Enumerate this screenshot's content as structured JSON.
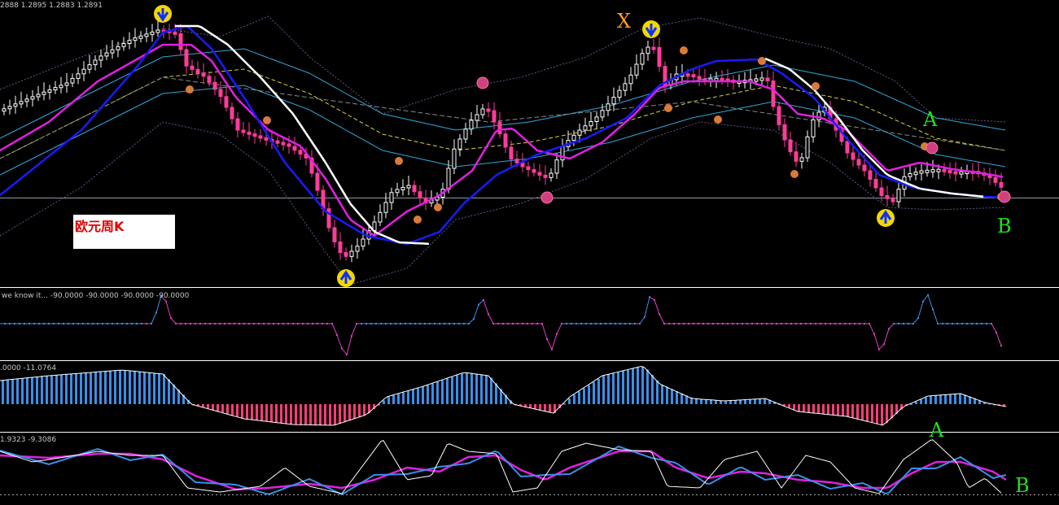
{
  "main_panel": {
    "ohlc_readout": "2888 1.2895 1.2883 1.2891",
    "chart_title": "欧元周K",
    "marks": {
      "x": "X",
      "a": "A",
      "b": "B"
    }
  },
  "indicator_1": {
    "readout": "we know it... -90.0000 -90.0000 -90.0000 -90.0000"
  },
  "indicator_2": {
    "readout": ".0000 -11.0764"
  },
  "indicator_3": {
    "readout": "1.9323 -9.3086",
    "marks": {
      "a": "A",
      "b": "B"
    }
  },
  "colors": {
    "background": "#000000",
    "bull_candle": "#ffffff",
    "bear_candle": "#ff3c9a",
    "ma_white": "#ffffff",
    "ma_blue": "#1a1aff",
    "ma_magenta": "#e020e0",
    "band_outer": "#5a5a8c",
    "band_inner": "#2fa7d8",
    "dashed_yellow": "#d8d040",
    "hist_up": "#3a8fe8",
    "hist_down": "#ff3c7a",
    "label_green": "#22e022",
    "label_orange": "#ff9a22"
  },
  "chart_data": {
    "type": "candlestick",
    "series": [
      {
        "name": "price",
        "note": "weekly EUR candles, values approximate (price scale not printed)"
      }
    ],
    "price_approx": [
      1.3,
      1.31,
      1.32,
      1.34,
      1.35,
      1.36,
      1.37,
      1.38,
      1.385,
      1.39,
      1.38,
      1.36,
      1.34,
      1.31,
      1.29,
      1.27,
      1.26,
      1.24,
      1.22,
      1.2,
      1.19,
      1.2,
      1.22,
      1.24,
      1.25,
      1.24,
      1.23,
      1.24,
      1.27,
      1.3,
      1.32,
      1.33,
      1.31,
      1.29,
      1.28,
      1.27,
      1.28,
      1.29,
      1.3,
      1.31,
      1.32,
      1.33,
      1.35,
      1.37,
      1.39,
      1.36,
      1.35,
      1.355,
      1.36,
      1.35,
      1.34,
      1.3,
      1.29,
      1.27,
      1.26,
      1.25,
      1.24,
      1.25,
      1.26,
      1.265,
      1.26,
      1.255,
      1.25
    ]
  }
}
